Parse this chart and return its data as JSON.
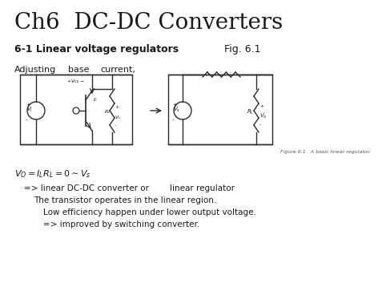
{
  "title": "Ch6  DC-DC Converters",
  "subtitle": "6-1 Linear voltage regulators",
  "fig_label": "Fig. 6.1",
  "figure_caption": "Figure 6.1   A basic linear regulator.",
  "bg_color": "#ffffff",
  "text_color": "#1a1a1a",
  "circuit_color": "#2a2a2a"
}
